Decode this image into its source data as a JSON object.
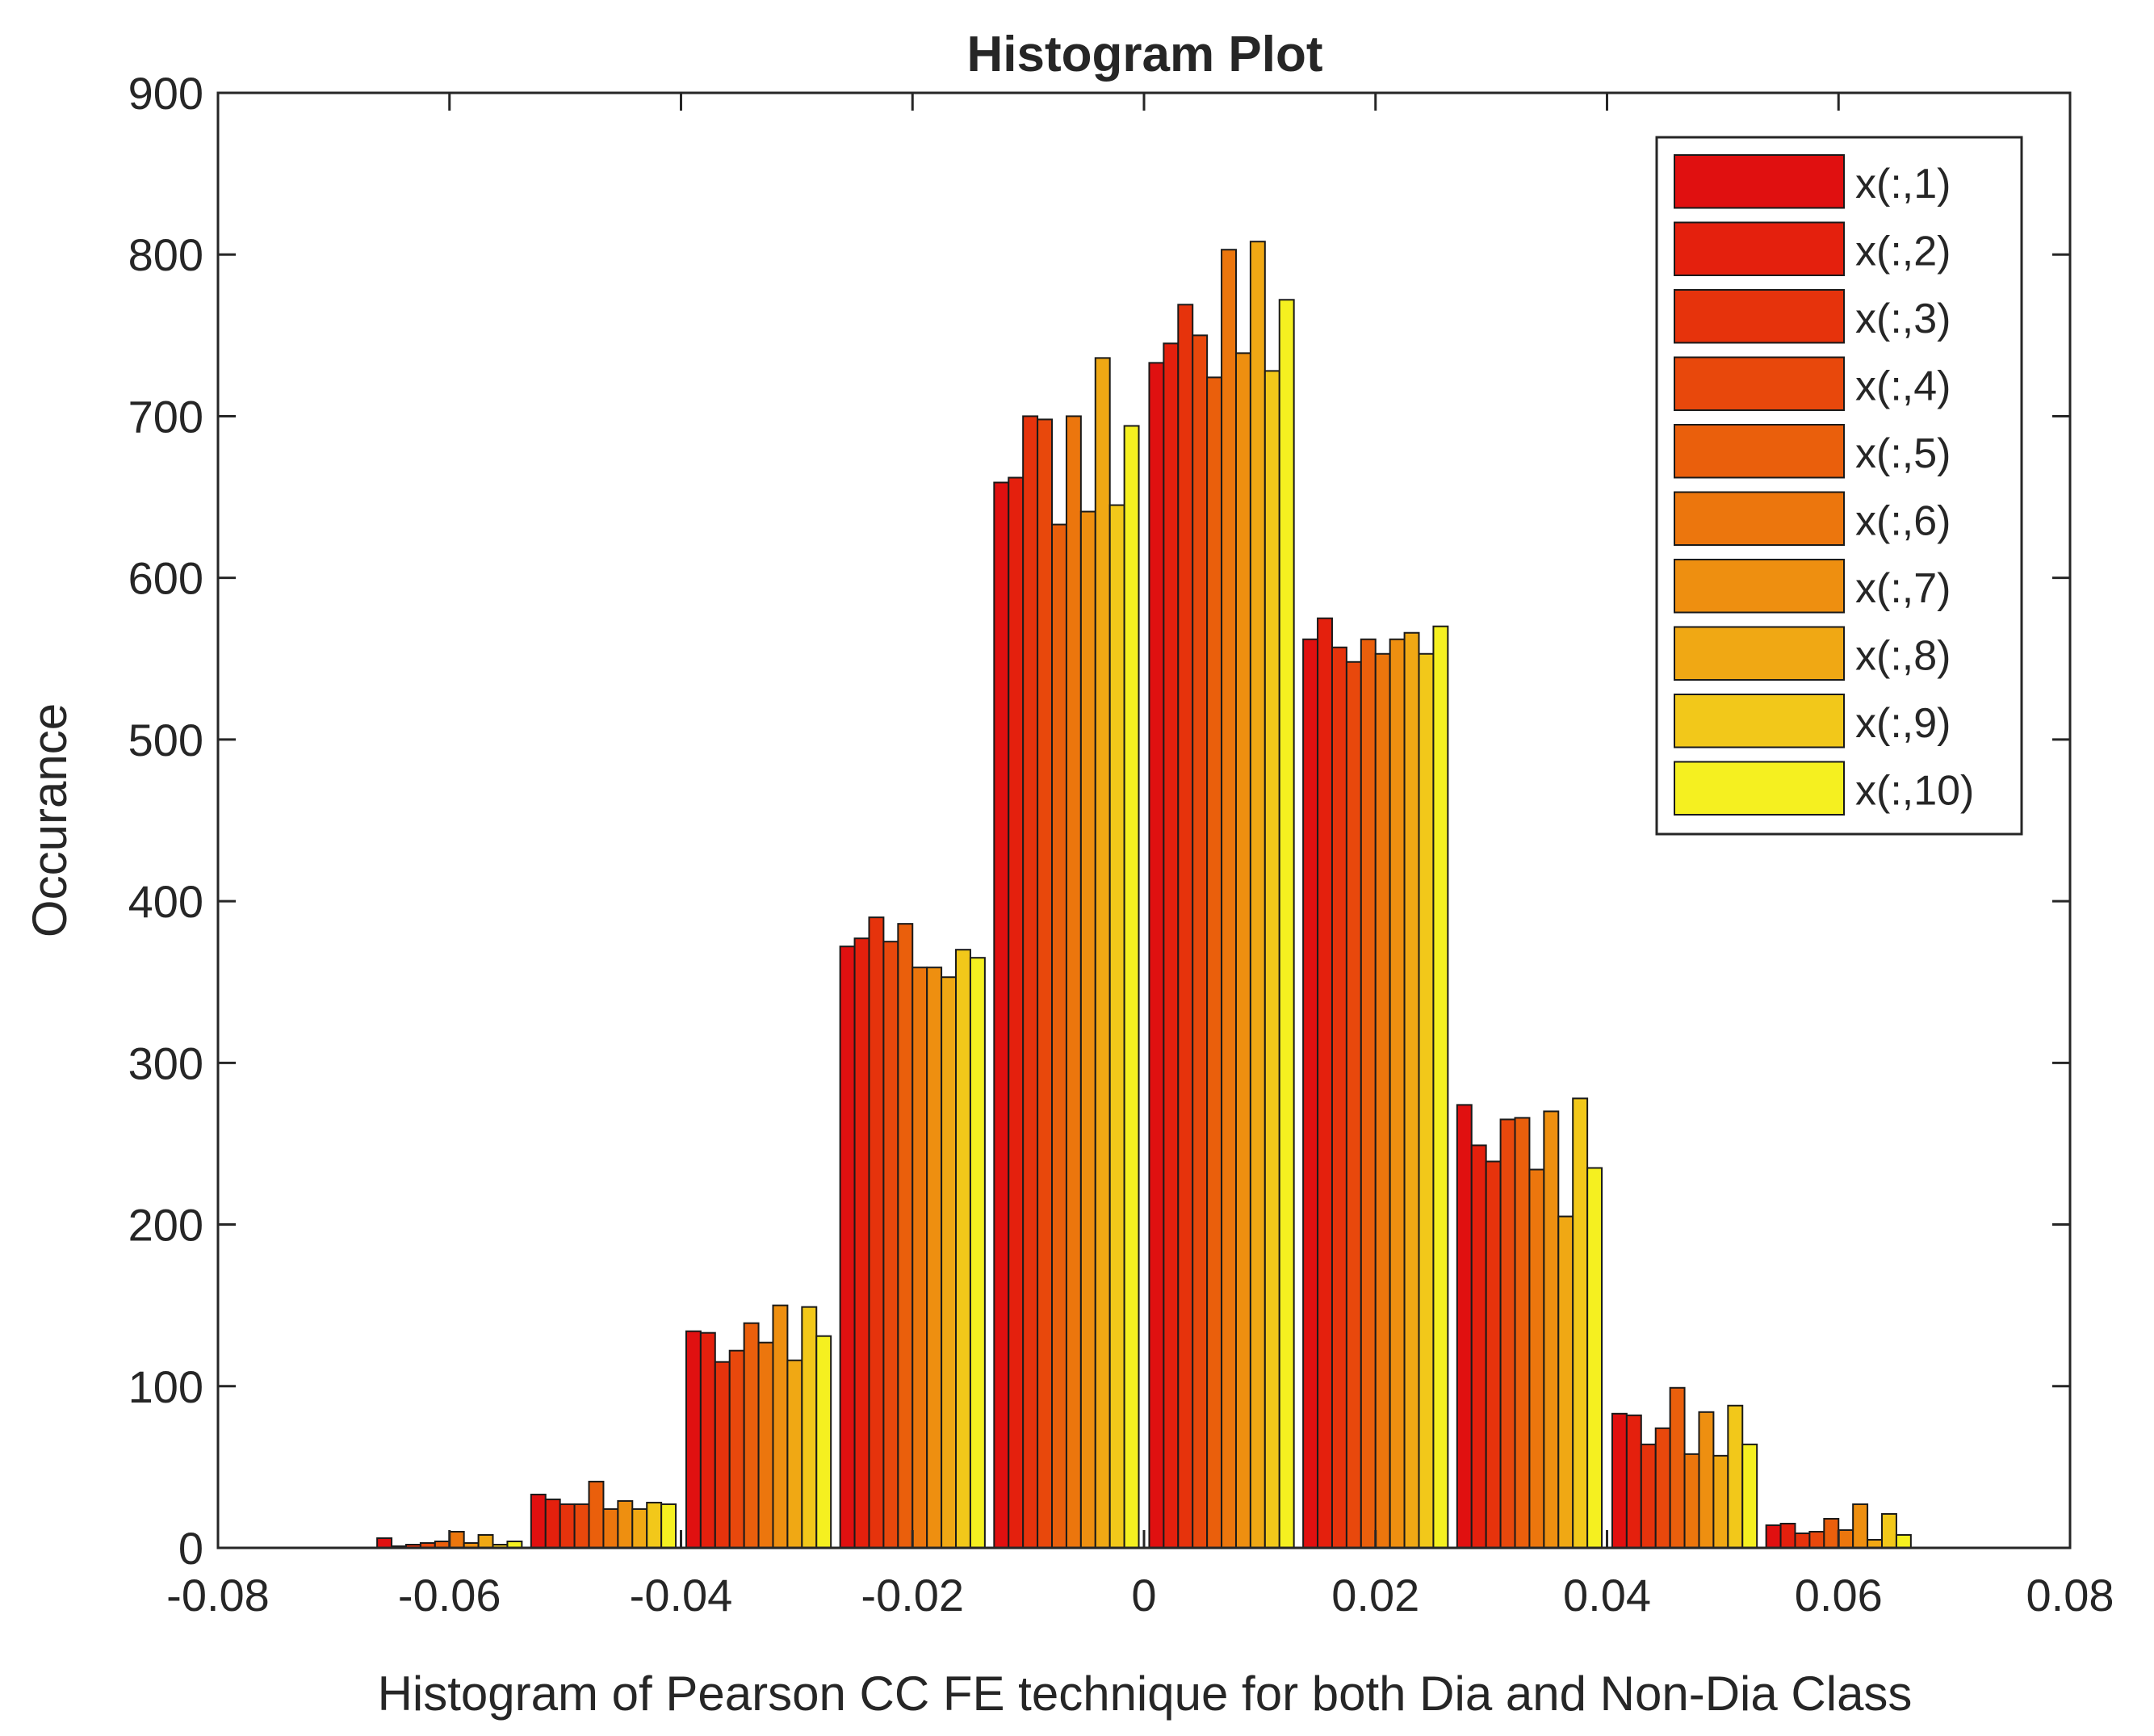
{
  "chart_data": {
    "type": "bar",
    "title": "Histogram Plot",
    "xlabel": "Histogram of Pearson CC FE technique for both Dia and Non-Dia Class",
    "ylabel": "Occurance",
    "xlim": [
      -0.08,
      0.08
    ],
    "ylim": [
      0,
      900
    ],
    "xticks": [
      -0.08,
      -0.06,
      -0.04,
      -0.02,
      0,
      0.02,
      0.04,
      0.06,
      0.08
    ],
    "xtick_labels": [
      "-0.08",
      "-0.06",
      "-0.04",
      "-0.02",
      "0",
      "0.02",
      "0.04",
      "0.06",
      "0.08"
    ],
    "yticks": [
      0,
      100,
      200,
      300,
      400,
      500,
      600,
      700,
      800,
      900
    ],
    "ytick_labels": [
      "0",
      "100",
      "200",
      "300",
      "400",
      "500",
      "600",
      "700",
      "800",
      "900"
    ],
    "grid": false,
    "legend_position": "top-right",
    "categories": [
      -0.06,
      -0.0467,
      -0.0333,
      -0.02,
      -0.0067,
      0.0067,
      0.02,
      0.0333,
      0.0467,
      0.06
    ],
    "series": [
      {
        "name": "x(:,1)",
        "color": "#e01010",
        "values": [
          6,
          33,
          134,
          372,
          659,
          733,
          562,
          274,
          83,
          14
        ]
      },
      {
        "name": "x(:,2)",
        "color": "#e4200d",
        "values": [
          1,
          30,
          133,
          377,
          662,
          745,
          575,
          249,
          82,
          15
        ]
      },
      {
        "name": "x(:,3)",
        "color": "#e6330c",
        "values": [
          2,
          27,
          115,
          390,
          700,
          769,
          557,
          239,
          64,
          9
        ]
      },
      {
        "name": "x(:,4)",
        "color": "#e8480c",
        "values": [
          3,
          27,
          122,
          375,
          698,
          750,
          548,
          265,
          74,
          10
        ]
      },
      {
        "name": "x(:,5)",
        "color": "#ea5f0c",
        "values": [
          4,
          41,
          139,
          386,
          633,
          724,
          562,
          266,
          99,
          18
        ]
      },
      {
        "name": "x(:,6)",
        "color": "#ec760d",
        "values": [
          10,
          24,
          127,
          359,
          700,
          803,
          553,
          234,
          58,
          11
        ]
      },
      {
        "name": "x(:,7)",
        "color": "#ee8f10",
        "values": [
          3,
          29,
          150,
          359,
          641,
          739,
          562,
          270,
          84,
          27
        ]
      },
      {
        "name": "x(:,8)",
        "color": "#f0a814",
        "values": [
          8,
          24,
          116,
          353,
          736,
          808,
          566,
          205,
          57,
          5
        ]
      },
      {
        "name": "x(:,9)",
        "color": "#f2c81a",
        "values": [
          2,
          28,
          149,
          370,
          645,
          728,
          553,
          278,
          88,
          21
        ]
      },
      {
        "name": "x(:,10)",
        "color": "#f5f020",
        "values": [
          4,
          27,
          131,
          365,
          694,
          772,
          570,
          235,
          64,
          8
        ]
      }
    ]
  }
}
